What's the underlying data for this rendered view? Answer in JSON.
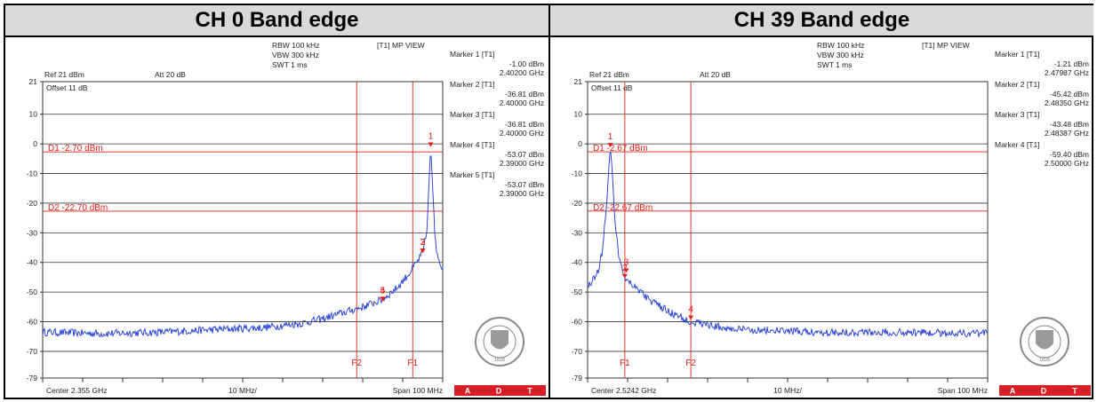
{
  "colors": {
    "trace": "#1a35d6",
    "marker": "#e0201a",
    "grid": "#333333",
    "frame_bg": "#d9d9d9",
    "adt": "#d91f26"
  },
  "logo": {
    "name": "bureau-veritas-seal",
    "text_top": "BUREAU VERITAS",
    "year": "1828"
  },
  "chart_data": [
    {
      "type": "line",
      "title": "CH 0 Band edge",
      "header": {
        "rbw": "RBW 100 kHz",
        "vbw": "VBW 300 kHz",
        "swt": "SWT 1 ms",
        "view": "[T1] MP VIEW",
        "ref": "Ref 21 dBm",
        "att": "Att 20 dB",
        "offset": "Offset 11 dB"
      },
      "xlim": [
        2.305,
        2.405
      ],
      "ylim": [
        -79,
        21
      ],
      "yticks": [
        21,
        10,
        0,
        -10,
        -20,
        -30,
        -40,
        -50,
        -60,
        -70,
        -79
      ],
      "footer": {
        "center": "Center 2.355 GHz",
        "div": "10 MHz/",
        "span": "Span 100 MHz"
      },
      "thresholds": [
        {
          "label": "D1 -2.70 dBm",
          "value": -2.7
        },
        {
          "label": "D2 -22.70 dBm",
          "value": -22.7
        }
      ],
      "vlines": [
        {
          "label": "F2",
          "x": 2.3835
        },
        {
          "label": "F1",
          "x": 2.3975
        }
      ],
      "markers": [
        {
          "id": "1",
          "x": 2.402,
          "y": -1.0,
          "title": "Marker 1 [T1]",
          "level": "-1.00 dBm",
          "freq": "2.40200 GHz"
        },
        {
          "id": "2",
          "x": 2.4,
          "y": -36.81,
          "title": "Marker 2 [T1]",
          "level": "-36.81 dBm",
          "freq": "2.40000 GHz"
        },
        {
          "id": "3",
          "x": 2.4,
          "y": -36.81,
          "title": "Marker 3 [T1]",
          "level": "-36.81 dBm",
          "freq": "2.40000 GHz"
        },
        {
          "id": "4",
          "x": 2.39,
          "y": -53.07,
          "title": "Marker 4 [T1]",
          "level": "-53.07 dBm",
          "freq": "2.39000 GHz"
        },
        {
          "id": "5",
          "x": 2.39,
          "y": -53.07,
          "title": "Marker 5 [T1]",
          "level": "-53.07 dBm",
          "freq": "2.39000 GHz"
        }
      ],
      "series": [
        {
          "x": [
            2.305,
            2.32,
            2.335,
            2.35,
            2.36,
            2.37,
            2.375,
            2.38,
            2.385,
            2.39,
            2.394,
            2.397,
            2.399,
            2.4,
            2.401,
            2.4015,
            2.402,
            2.4025,
            2.403,
            2.4035,
            2.404,
            2.405
          ],
          "values": [
            -63.5,
            -64,
            -63.5,
            -62.5,
            -62,
            -60.5,
            -59,
            -57,
            -55,
            -52.5,
            -48,
            -43,
            -39,
            -36.8,
            -30,
            -15,
            -1,
            -15,
            -30,
            -37,
            -40,
            -42
          ]
        }
      ]
    },
    {
      "type": "line",
      "title": "CH 39 Band edge",
      "header": {
        "rbw": "RBW 100 kHz",
        "vbw": "VBW 300 kHz",
        "swt": "SWT 1 ms",
        "view": "[T1] MP VIEW",
        "ref": "Ref 21 dBm",
        "att": "Att 20 dB",
        "offset": "Offset 11 dB"
      },
      "xlim": [
        2.4742,
        2.5742
      ],
      "ylim": [
        -79,
        21
      ],
      "yticks": [
        21,
        10,
        0,
        -10,
        -20,
        -30,
        -40,
        -50,
        -60,
        -70,
        -79
      ],
      "footer": {
        "center": "Center 2.5242 GHz",
        "div": "10 MHz/",
        "span": "Span 100 MHz"
      },
      "thresholds": [
        {
          "label": "D1 -2.67 dBm",
          "value": -2.67
        },
        {
          "label": "D2 -22.67 dBm",
          "value": -22.67
        }
      ],
      "vlines": [
        {
          "label": "F1",
          "x": 2.4835
        },
        {
          "label": "F2",
          "x": 2.5
        }
      ],
      "markers": [
        {
          "id": "1",
          "x": 2.47987,
          "y": -1.21,
          "title": "Marker 1 [T1]",
          "level": "-1.21 dBm",
          "freq": "2.47987 GHz"
        },
        {
          "id": "2",
          "x": 2.4835,
          "y": -45.42,
          "title": "Marker 2 [T1]",
          "level": "-45.42 dBm",
          "freq": "2.48350 GHz"
        },
        {
          "id": "3",
          "x": 2.48387,
          "y": -43.48,
          "title": "Marker 3 [T1]",
          "level": "-43.48 dBm",
          "freq": "2.48387 GHz"
        },
        {
          "id": "4",
          "x": 2.5,
          "y": -59.4,
          "title": "Marker 4 [T1]",
          "level": "-59.40 dBm",
          "freq": "2.50000 GHz"
        }
      ],
      "series": [
        {
          "x": [
            2.4742,
            2.4755,
            2.477,
            2.478,
            2.479,
            2.4795,
            2.47987,
            2.4803,
            2.481,
            2.482,
            2.4835,
            2.486,
            2.49,
            2.495,
            2.5,
            2.51,
            2.53,
            2.55,
            2.5742
          ],
          "values": [
            -48,
            -46,
            -42,
            -35,
            -20,
            -8,
            -1.2,
            -8,
            -25,
            -38,
            -45,
            -48,
            -53,
            -57,
            -60,
            -62.5,
            -63.5,
            -63.5,
            -64
          ]
        }
      ]
    }
  ]
}
